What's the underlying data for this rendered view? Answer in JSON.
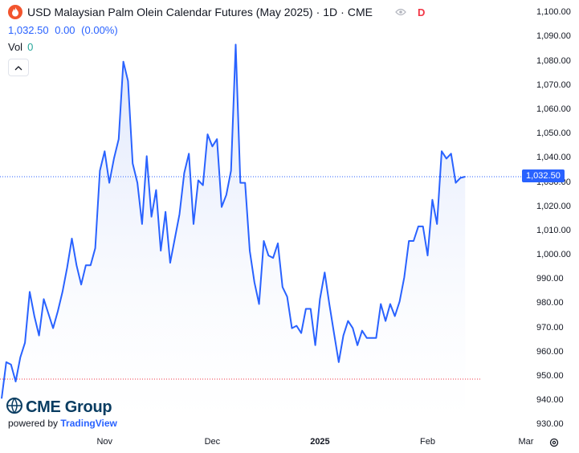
{
  "header": {
    "title": "USD Malaysian Palm Olein Calendar Futures (May 2025)",
    "interval": "1D",
    "exchange": "CME",
    "separator": "·",
    "flag": "D"
  },
  "quote": {
    "last": "1,032.50",
    "change": "0.00",
    "change_pct": "(0.00%)"
  },
  "volume": {
    "label": "Vol",
    "value": "0"
  },
  "branding": {
    "logo_text": "CME Group",
    "powered_prefix": "powered by",
    "powered_brand": "TradingView"
  },
  "colors": {
    "line": "#2962ff",
    "fill_top": "#dbe4fb",
    "fill_bottom": "#ffffff",
    "last_price_line": "#2962ff",
    "reference_line": "#f23645",
    "title_logo": "#f2542d"
  },
  "chart_data": {
    "type": "area",
    "title": "USD Malaysian Palm Olein Calendar Futures (May 2025)",
    "xlabel": "",
    "ylabel": "",
    "ylim": [
      925,
      1100
    ],
    "yticks": [
      "1,100.00",
      "1,090.00",
      "1,080.00",
      "1,070.00",
      "1,060.00",
      "1,050.00",
      "1,040.00",
      "1,030.00",
      "1,020.00",
      "1,010.00",
      "1,000.00",
      "990.00",
      "980.00",
      "970.00",
      "960.00",
      "950.00",
      "940.00",
      "930.00"
    ],
    "ytick_values": [
      1100,
      1090,
      1080,
      1070,
      1060,
      1050,
      1040,
      1030,
      1020,
      1010,
      1000,
      990,
      980,
      970,
      960,
      950,
      940,
      930
    ],
    "xticks": [
      {
        "label": "Nov",
        "index": 22,
        "bold": false
      },
      {
        "label": "Dec",
        "index": 45,
        "bold": false
      },
      {
        "label": "2025",
        "index": 68,
        "bold": true
      },
      {
        "label": "Feb",
        "index": 91,
        "bold": false
      },
      {
        "label": "Mar",
        "index": 112,
        "bold": false
      }
    ],
    "last_value": 1032.5,
    "last_value_label": "1,032.50",
    "reference_value": 949,
    "grid": false,
    "legend": "none",
    "values": [
      941,
      956,
      955,
      948,
      958,
      964,
      985,
      975,
      967,
      982,
      976,
      970,
      977,
      985,
      995,
      1007,
      996,
      988,
      996,
      996,
      1003,
      1035,
      1043,
      1030,
      1040,
      1048,
      1080,
      1072,
      1038,
      1030,
      1013,
      1041,
      1016,
      1027,
      1002,
      1018,
      997,
      1007,
      1017,
      1034,
      1042,
      1013,
      1031,
      1029,
      1050,
      1045,
      1048,
      1020,
      1025,
      1035,
      1087,
      1030,
      1030,
      1002,
      989,
      980,
      1006,
      1000,
      999,
      1005,
      987,
      983,
      970,
      971,
      968,
      978,
      978,
      963,
      982,
      993,
      980,
      968,
      956,
      967,
      973,
      970,
      963,
      969,
      966,
      966,
      966,
      980,
      973,
      980,
      975,
      981,
      991,
      1006,
      1006,
      1012,
      1012,
      1000,
      1023,
      1013,
      1043,
      1040,
      1042,
      1030,
      1032,
      1032.5
    ]
  }
}
